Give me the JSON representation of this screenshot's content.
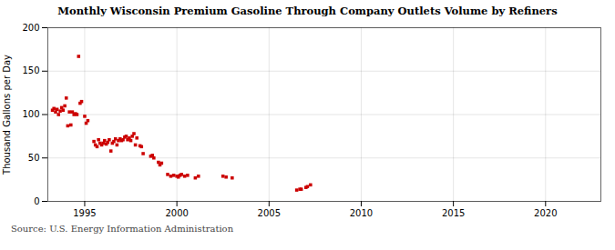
{
  "chart_data": {
    "type": "scatter",
    "title": "Monthly Wisconsin Premium Gasoline Through Company Outlets Volume by Refiners",
    "ylabel": "Thousand Gallons per Day",
    "source": "Source: U.S. Energy Information Administration",
    "color": "#cc0000",
    "marker": "square",
    "grid": true,
    "xlim": [
      1993.0,
      2023.0
    ],
    "ylim": [
      0,
      200
    ],
    "xticks": [
      1995,
      2000,
      2005,
      2010,
      2015,
      2020
    ],
    "yticks": [
      0,
      50,
      100,
      150,
      200
    ],
    "x": [
      1993.25,
      1993.33,
      1993.42,
      1993.5,
      1993.58,
      1993.67,
      1993.75,
      1993.83,
      1993.92,
      1994.0,
      1994.08,
      1994.17,
      1994.25,
      1994.33,
      1994.42,
      1994.5,
      1994.58,
      1994.67,
      1994.75,
      1994.83,
      1995.0,
      1995.08,
      1995.17,
      1995.5,
      1995.58,
      1995.67,
      1995.75,
      1995.83,
      1995.92,
      1996.0,
      1996.08,
      1996.17,
      1996.25,
      1996.33,
      1996.42,
      1996.5,
      1996.58,
      1996.67,
      1996.75,
      1996.83,
      1996.92,
      1997.0,
      1997.08,
      1997.17,
      1997.25,
      1997.33,
      1997.42,
      1997.5,
      1997.58,
      1997.67,
      1997.75,
      1997.83,
      1998.0,
      1998.08,
      1998.17,
      1998.58,
      1998.67,
      1998.75,
      1999.0,
      1999.08,
      1999.17,
      1999.5,
      1999.67,
      1999.83,
      2000.0,
      2000.08,
      2000.17,
      2000.25,
      2000.42,
      2000.58,
      2001.0,
      2001.17,
      2002.5,
      2002.67,
      2003.0,
      2006.5,
      2006.67,
      2006.75,
      2007.0,
      2007.08,
      2007.25
    ],
    "values": [
      105,
      107,
      103,
      106,
      100,
      104,
      108,
      105,
      110,
      119,
      87,
      103,
      88,
      103,
      100,
      101,
      100,
      167,
      113,
      115,
      98,
      90,
      93,
      69,
      65,
      63,
      71,
      67,
      65,
      67,
      70,
      66,
      68,
      71,
      58,
      67,
      69,
      72,
      65,
      70,
      72,
      70,
      71,
      74,
      75,
      71,
      73,
      70,
      75,
      78,
      65,
      73,
      64,
      63,
      55,
      52,
      53,
      50,
      45,
      42,
      44,
      31,
      29,
      30,
      29,
      28,
      30,
      31,
      29,
      30,
      27,
      29,
      29,
      28,
      27,
      13,
      14,
      14,
      16,
      17,
      19
    ]
  }
}
